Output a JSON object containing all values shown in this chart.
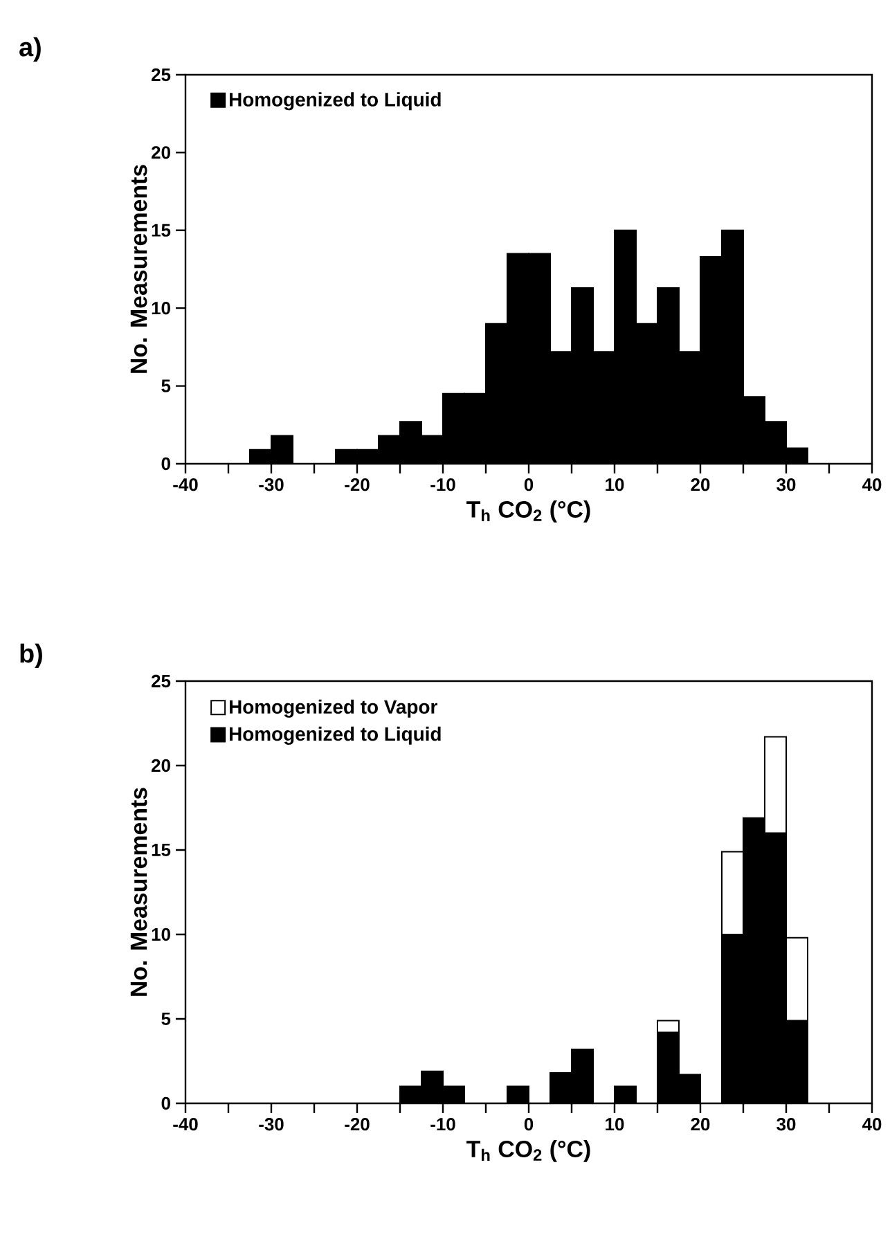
{
  "chart_data": [
    {
      "type": "histogram",
      "title": "a)",
      "xlabel": "T$_{h}$ CO$_{2}$ (°C)",
      "ylabel": "No. Measurements",
      "bins": [
        -32.5,
        -30,
        -27.5,
        -25,
        -22.5,
        -20,
        -17.5,
        -15,
        -12.5,
        -10,
        -7.5,
        -5,
        -2.5,
        0,
        2.5,
        5,
        7.5,
        10,
        12.5,
        15,
        17.5,
        20,
        22.5,
        25,
        27.5,
        30,
        32.5
      ],
      "series": [
        {
          "name": "Homogenized to Liquid",
          "color": "#000000",
          "values": [
            0.9,
            1.8,
            0,
            0,
            0.9,
            0.9,
            1.8,
            2.7,
            1.8,
            4.5,
            4.5,
            9.0,
            13.5,
            13.5,
            7.2,
            11.3,
            7.2,
            15.0,
            9.0,
            11.3,
            7.2,
            13.3,
            15.0,
            4.3,
            2.7,
            1.0
          ]
        }
      ],
      "xlim": [
        -40,
        40
      ],
      "ylim": [
        0,
        25
      ],
      "xticks": [
        -40,
        {
          "value": -35,
          "label": null
        },
        -30,
        {
          "value": -25,
          "label": null
        },
        -20,
        {
          "value": -15,
          "label": null
        },
        -10,
        {
          "value": -5,
          "label": null
        },
        0,
        {
          "value": 5,
          "label": null
        },
        10,
        {
          "value": 15,
          "label": null
        },
        20,
        {
          "value": 25,
          "label": null
        },
        30,
        {
          "value": 35,
          "label": null
        },
        40
      ],
      "yticks": [
        0,
        5,
        10,
        15,
        20,
        25
      ],
      "legend": "top left"
    },
    {
      "type": "bar",
      "title": "b)",
      "xlabel": "T$_{h}$ CO$_{2}$ (°C)",
      "ylabel": "No. Measurements",
      "x": [
        -13.75,
        -11.25,
        -8.75,
        -6.25,
        -3.75,
        -1.25,
        1.25,
        3.75,
        6.25,
        8.75,
        11.25,
        13.75,
        16.25,
        18.75,
        21.25,
        23.75,
        26.25,
        28.75,
        31.25
      ],
      "series": [
        {
          "name": "Homogenized to Liquid",
          "color": "#000000",
          "values": [
            1.0,
            1.9,
            1.0,
            0,
            0,
            1.0,
            0,
            1.8,
            3.2,
            0,
            1.0,
            0,
            4.2,
            1.7,
            0,
            10.0,
            16.9,
            16.0,
            4.9
          ]
        },
        {
          "name": "Homogenized to Vapor",
          "color": "#ffffff",
          "values": [
            0,
            0,
            0,
            0,
            0,
            0,
            0,
            0,
            0,
            0,
            0,
            0,
            0.7,
            0,
            0,
            4.9,
            0,
            5.7,
            4.9
          ]
        }
      ],
      "stacked": true,
      "xlim": [
        -40,
        40
      ],
      "ylim": [
        0,
        25
      ],
      "xticks": [
        -40,
        {
          "value": -35,
          "label": null
        },
        -30,
        {
          "value": -25,
          "label": null
        },
        -20,
        {
          "value": -15,
          "label": null
        },
        -10,
        {
          "value": -5,
          "label": null
        },
        0,
        {
          "value": 5,
          "label": null
        },
        10,
        {
          "value": 15,
          "label": null
        },
        20,
        {
          "value": 25,
          "label": null
        },
        30,
        {
          "value": 35,
          "label": null
        },
        40
      ],
      "yticks": [
        0,
        5,
        10,
        15,
        20,
        25
      ],
      "legend": "top left"
    }
  ]
}
